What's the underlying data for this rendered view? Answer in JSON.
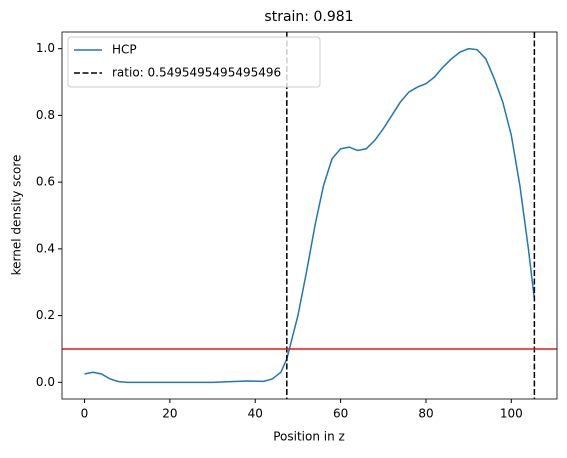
{
  "chart_data": {
    "type": "line",
    "title": "strain: 0.981",
    "x_label": "Position in z",
    "y_label": "kernel density score",
    "x": [
      0,
      2,
      4,
      6,
      8,
      10,
      20,
      30,
      38,
      42,
      44,
      46,
      47.4,
      48,
      50,
      52,
      54,
      56,
      58,
      60,
      62,
      64,
      66,
      68,
      70,
      72,
      74,
      76,
      78,
      80,
      82,
      84,
      86,
      88,
      90,
      92,
      94,
      96,
      98,
      100,
      102,
      104,
      105.4
    ],
    "series": [
      {
        "name": "HCP",
        "color": "#1f77b4",
        "values": [
          0.025,
          0.03,
          0.025,
          0.01,
          0.002,
          0,
          0,
          0,
          0.004,
          0.003,
          0.01,
          0.03,
          0.07,
          0.1,
          0.2,
          0.33,
          0.47,
          0.59,
          0.67,
          0.7,
          0.705,
          0.695,
          0.7,
          0.725,
          0.76,
          0.8,
          0.84,
          0.87,
          0.885,
          0.895,
          0.915,
          0.945,
          0.97,
          0.99,
          1.0,
          0.997,
          0.97,
          0.91,
          0.84,
          0.74,
          0.59,
          0.4,
          0.25
        ]
      },
      {
        "name": "ratio: 0.5495495495495496",
        "color": "#000000",
        "style": "dashed",
        "vlines": [
          47.4,
          105.4
        ]
      }
    ],
    "hline": {
      "value": 0.1,
      "color": "#e41a1c"
    },
    "xlim": [
      -5.27,
      110.7
    ],
    "ylim": [
      -0.05,
      1.05
    ],
    "xticks": [
      0,
      20,
      40,
      60,
      80,
      100
    ],
    "yticks": [
      {
        "value": 0,
        "label": "0.0"
      },
      {
        "value": 0.2,
        "label": "0.2"
      },
      {
        "value": 0.4,
        "label": "0.4"
      },
      {
        "value": 0.6,
        "label": "0.6"
      },
      {
        "value": 0.8,
        "label": "0.8"
      },
      {
        "value": 1,
        "label": "1.0"
      }
    ],
    "legend": "upper left"
  }
}
